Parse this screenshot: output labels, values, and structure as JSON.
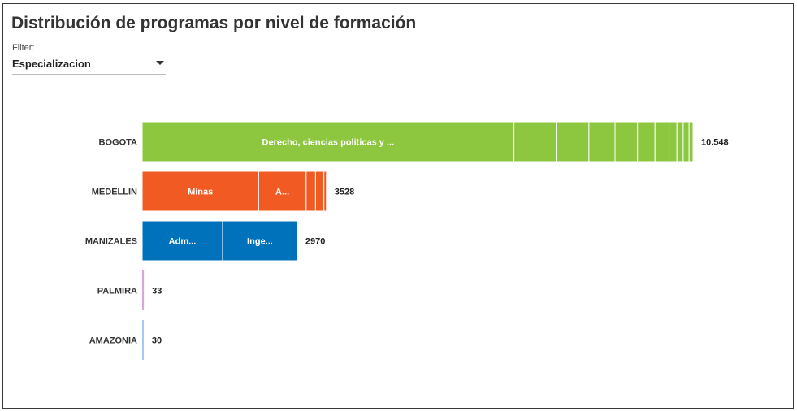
{
  "header": {
    "title": "Distribución de programas por nivel de formación",
    "filter_label": "Filter:",
    "filter_value": "Especializacion"
  },
  "chart_data": {
    "type": "bar",
    "orientation": "horizontal",
    "stacked": true,
    "xlim": [
      0,
      10548
    ],
    "categories": [
      "BOGOTA",
      "MEDELLIN",
      "MANIZALES",
      "PALMIRA",
      "AMAZONIA"
    ],
    "colors": [
      "#8dc63f",
      "#f15a22",
      "#0072bc",
      "#d8a7d8",
      "#9ec9ee"
    ],
    "bars": [
      {
        "category": "BOGOTA",
        "total_label": "10.548",
        "segments": [
          {
            "label": "Derecho, ciencias politicas y ...",
            "value": 7120
          },
          {
            "label": "",
            "value": 810
          },
          {
            "label": "",
            "value": 625
          },
          {
            "label": "",
            "value": 500
          },
          {
            "label": "",
            "value": 430
          },
          {
            "label": "",
            "value": 335
          },
          {
            "label": "",
            "value": 270
          },
          {
            "label": "",
            "value": 150
          },
          {
            "label": "",
            "value": 120
          },
          {
            "label": "",
            "value": 113
          },
          {
            "label": "",
            "value": 75
          }
        ]
      },
      {
        "category": "MEDELLIN",
        "total_label": "3528",
        "segments": [
          {
            "label": "Minas",
            "value": 2230
          },
          {
            "label": "A...",
            "value": 910
          },
          {
            "label": "",
            "value": 180
          },
          {
            "label": "",
            "value": 160
          },
          {
            "label": "",
            "value": 48
          }
        ]
      },
      {
        "category": "MANIZALES",
        "total_label": "2970",
        "segments": [
          {
            "label": "Adm...",
            "value": 1540
          },
          {
            "label": "Inge...",
            "value": 1430
          }
        ]
      },
      {
        "category": "PALMIRA",
        "total_label": "33",
        "segments": [
          {
            "label": "",
            "value": 33
          }
        ]
      },
      {
        "category": "AMAZONIA",
        "total_label": "30",
        "segments": [
          {
            "label": "",
            "value": 30
          }
        ]
      }
    ]
  }
}
